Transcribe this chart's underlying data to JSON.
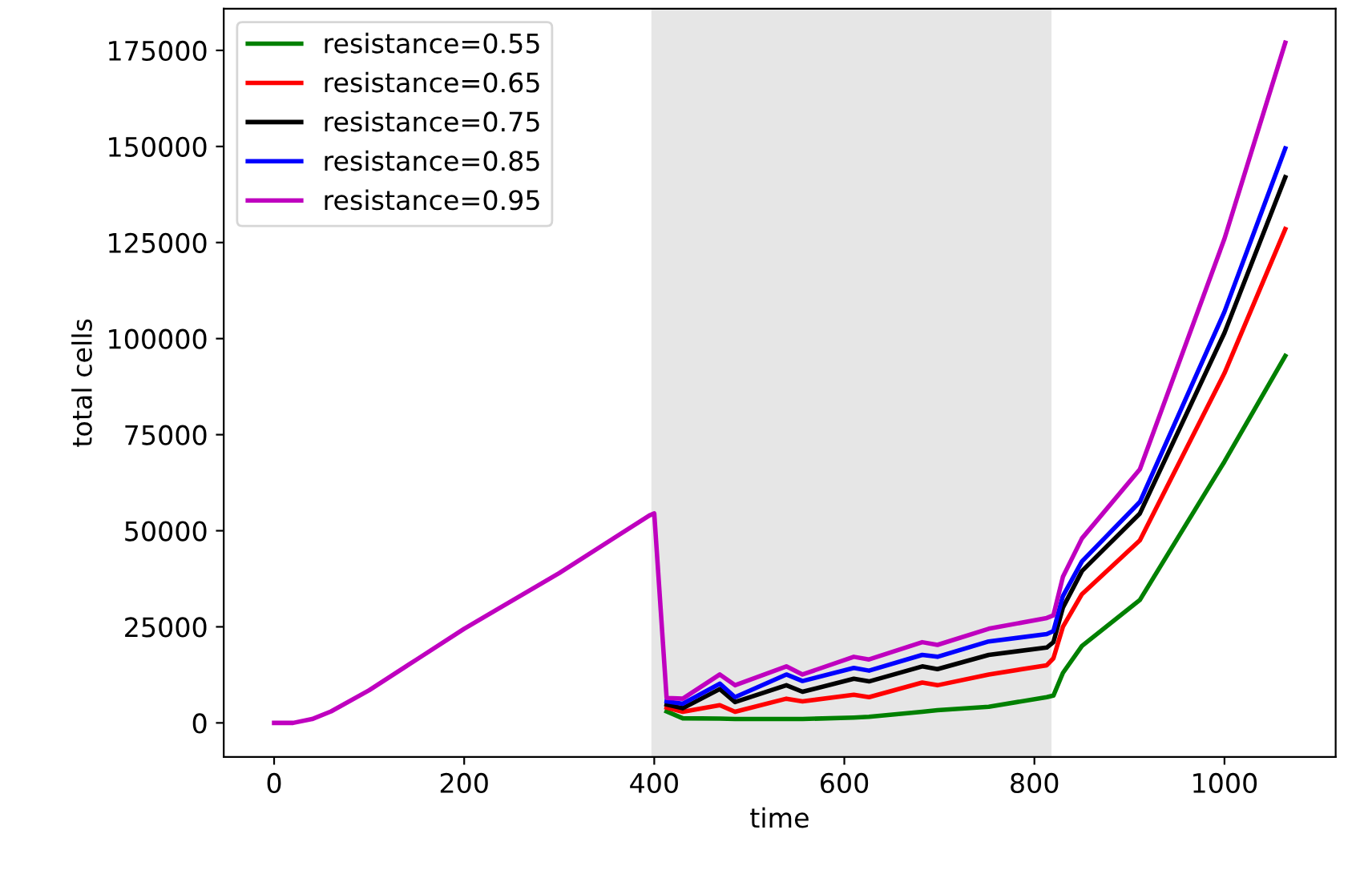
{
  "chart_data": {
    "type": "line",
    "xlabel": "time",
    "ylabel": "total cells",
    "xlim": [
      -53,
      1117
    ],
    "ylim": [
      -8850,
      185850
    ],
    "xticks": [
      0,
      200,
      400,
      600,
      800,
      1000
    ],
    "yticks": [
      0,
      25000,
      50000,
      75000,
      100000,
      125000,
      150000,
      175000
    ],
    "grid": false,
    "legend": "top left",
    "marker": "none",
    "line_style": "solid",
    "bands": [
      {
        "axis": "x",
        "from": 397,
        "to": 818,
        "color": "#e6e6e6"
      }
    ],
    "x": [
      0,
      20,
      40,
      60,
      100,
      150,
      200,
      300,
      395,
      400,
      413,
      430,
      469,
      485,
      539,
      556,
      610,
      626,
      682,
      698,
      752,
      813,
      820,
      830,
      850,
      911,
      1000,
      1064
    ],
    "series": [
      {
        "name": "resistance=0.55",
        "color": "#008000",
        "values": [
          null,
          null,
          null,
          null,
          null,
          null,
          null,
          null,
          null,
          null,
          3000,
          1200,
          1100,
          1000,
          1000,
          1000,
          1400,
          1600,
          2900,
          3300,
          4200,
          6700,
          7100,
          13000,
          20000,
          32000,
          68000,
          95500
        ]
      },
      {
        "name": "resistance=0.65",
        "color": "#ff0000",
        "values": [
          null,
          null,
          null,
          null,
          null,
          null,
          null,
          null,
          null,
          null,
          4000,
          2900,
          4600,
          2900,
          6300,
          5600,
          7300,
          6700,
          10500,
          9800,
          12600,
          15000,
          16800,
          25000,
          33500,
          47500,
          91000,
          128500
        ]
      },
      {
        "name": "resistance=0.75",
        "color": "#000000",
        "values": [
          null,
          null,
          null,
          null,
          null,
          null,
          null,
          null,
          null,
          null,
          4800,
          3800,
          8800,
          5400,
          9800,
          8100,
          11500,
          10800,
          14700,
          14000,
          17700,
          19600,
          21000,
          30000,
          39500,
          54500,
          101500,
          142000
        ]
      },
      {
        "name": "resistance=0.85",
        "color": "#0000ff",
        "values": [
          null,
          null,
          null,
          null,
          null,
          null,
          null,
          null,
          null,
          null,
          5600,
          5000,
          10200,
          6700,
          12600,
          10900,
          14300,
          13600,
          17700,
          17200,
          21200,
          23100,
          23900,
          33000,
          42000,
          57500,
          107000,
          149500
        ]
      },
      {
        "name": "resistance=0.95",
        "color": "#bf00bf",
        "values": [
          0,
          0,
          1000,
          3000,
          8500,
          16500,
          24500,
          39000,
          54000,
          54500,
          6500,
          6300,
          12600,
          9800,
          14700,
          12600,
          17200,
          16500,
          21000,
          20300,
          24500,
          27300,
          28000,
          38000,
          48000,
          66000,
          126000,
          177000
        ]
      }
    ]
  }
}
